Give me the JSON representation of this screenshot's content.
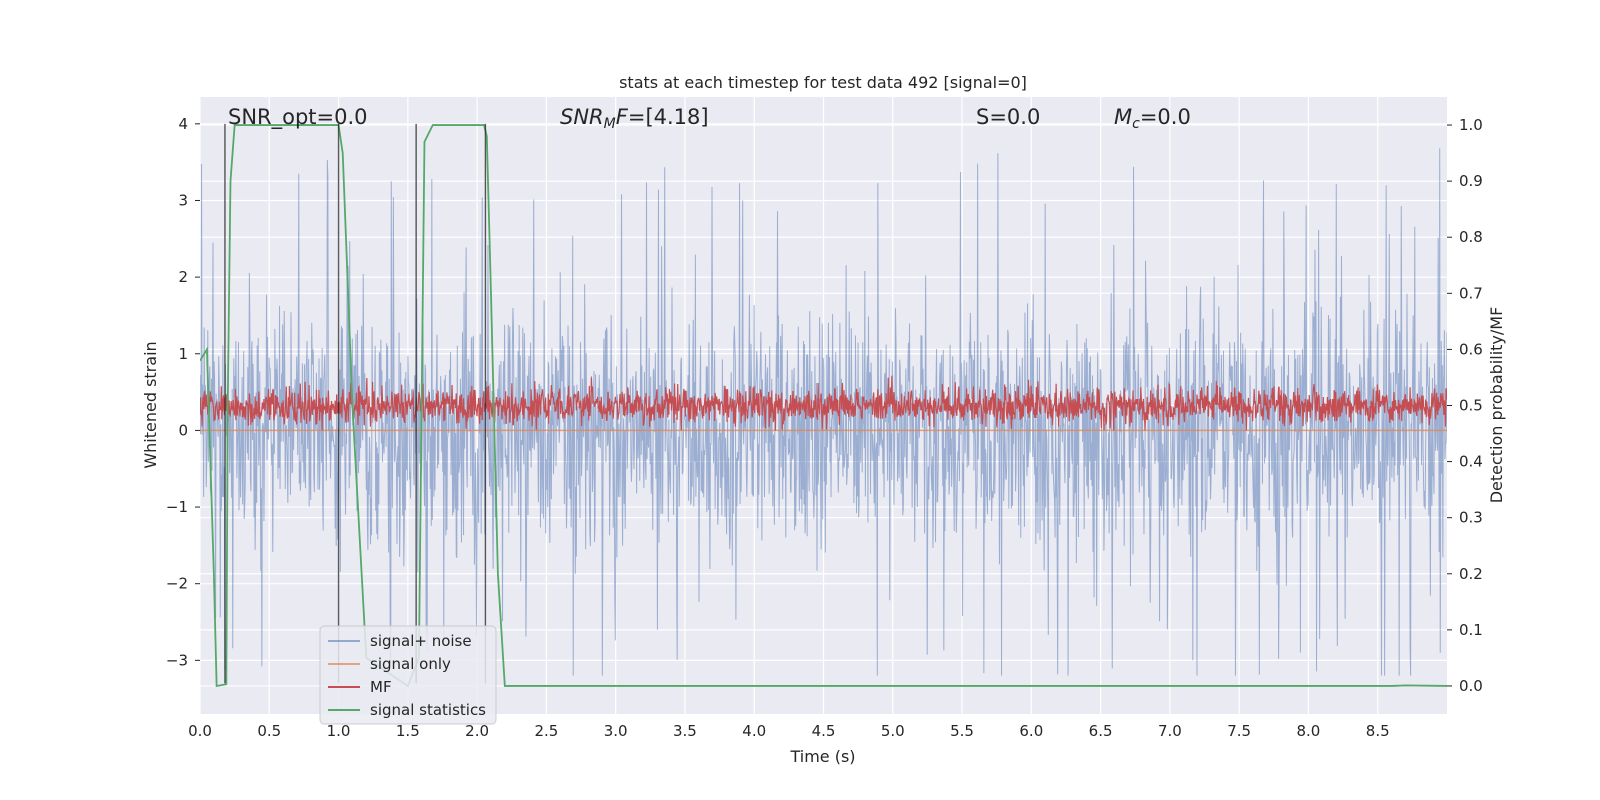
{
  "chart_data": {
    "type": "line",
    "title": "stats at each timestep for test data 492 [signal=0]",
    "xlabel": "Time (s)",
    "ylabel": "Whitened strain",
    "y2label": "Detection probability/MF",
    "xlim": [
      0.0,
      9.0
    ],
    "ylim": [
      -3.7,
      4.35
    ],
    "y2lim": [
      -0.05,
      1.05
    ],
    "xticks": [
      "0.0",
      "0.5",
      "1.0",
      "1.5",
      "2.0",
      "2.5",
      "3.0",
      "3.5",
      "4.0",
      "4.5",
      "5.0",
      "5.5",
      "6.0",
      "6.5",
      "7.0",
      "7.5",
      "8.0",
      "8.5"
    ],
    "yticks": [
      "−3",
      "−2",
      "−1",
      "0",
      "1",
      "2",
      "3",
      "4"
    ],
    "y2ticks": [
      "0.0",
      "0.1",
      "0.2",
      "0.3",
      "0.4",
      "0.5",
      "0.6",
      "0.7",
      "0.8",
      "0.9",
      "1.0"
    ],
    "grid": true,
    "legend_position": "lower-left",
    "annotations": {
      "snr_opt": "SNR_opt=0.0",
      "snr_mf": "[4.18]",
      "s": "S=0.0",
      "mc": "=0.0"
    },
    "series": [
      {
        "name": "signal+ noise",
        "color": "#4c72b0",
        "axis": "left",
        "style": "noise band",
        "y_range": [
          -3.2,
          3.8
        ]
      },
      {
        "name": "signal only",
        "color": "#dd8452",
        "axis": "left",
        "y": 0.0
      },
      {
        "name": "MF",
        "color": "#c44e52",
        "axis": "left",
        "style": "band",
        "y_range": [
          0.0,
          0.9
        ]
      },
      {
        "name": "signal statistics",
        "color": "#55a868",
        "axis": "right",
        "x": [
          0.0,
          0.05,
          0.1,
          0.12,
          0.19,
          0.2,
          0.22,
          0.25,
          1.0,
          1.03,
          1.1,
          1.2,
          1.5,
          1.58,
          1.62,
          1.68,
          2.05,
          2.07,
          2.1,
          2.15,
          2.2,
          2.5,
          5.0,
          8.6,
          8.7,
          9.0
        ],
        "y": [
          0.58,
          0.6,
          0.2,
          0.0,
          0.003,
          0.5,
          0.9,
          1.0,
          1.0,
          0.95,
          0.5,
          0.05,
          0.0,
          0.05,
          0.97,
          1.0,
          1.0,
          0.98,
          0.7,
          0.2,
          0.0,
          0.0,
          0.0,
          0.0,
          0.001,
          0.0
        ]
      }
    ],
    "vertical_markers": {
      "color": "#222222",
      "x": [
        0.18,
        1.0,
        1.56,
        2.06
      ],
      "y_range": [
        -3.3,
        4.0
      ]
    }
  }
}
